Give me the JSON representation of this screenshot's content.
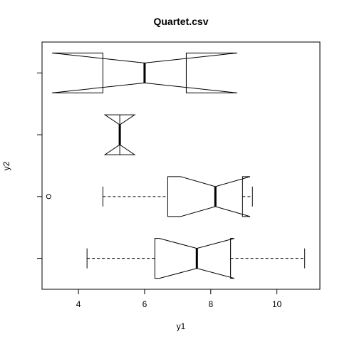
{
  "chart_data": {
    "type": "box",
    "orientation": "horizontal",
    "notched": true,
    "title": "Quartet.csv",
    "xlabel": "y1",
    "ylabel": "y2",
    "xlim": [
      2.9,
      11.3
    ],
    "ylim": [
      0.5,
      4.5
    ],
    "x_ticks": [
      4,
      6,
      8,
      10
    ],
    "y_ticks": [
      1,
      2,
      3,
      4
    ],
    "boxes": [
      {
        "position": 1,
        "min": 4.26,
        "q1": 6.31,
        "median": 7.58,
        "q3": 8.6,
        "max": 10.84,
        "notch_low": 6.45,
        "notch_high": 8.71,
        "outliers": []
      },
      {
        "position": 2,
        "min": 4.74,
        "q1": 6.7,
        "median": 8.14,
        "q3": 8.96,
        "max": 9.26,
        "notch_low": 7.09,
        "notch_high": 9.19,
        "outliers": [
          3.1
        ]
      },
      {
        "position": 3,
        "min": 5.25,
        "q1": 5.25,
        "median": 5.25,
        "q3": 5.25,
        "max": 5.25,
        "notch_low": 4.8,
        "notch_high": 5.7,
        "outliers": []
      },
      {
        "position": 4,
        "min": 4.74,
        "q1": 4.74,
        "median": 6.0,
        "q3": 7.26,
        "max": 7.26,
        "notch_low": 3.2,
        "notch_high": 8.8,
        "outliers": []
      }
    ]
  }
}
